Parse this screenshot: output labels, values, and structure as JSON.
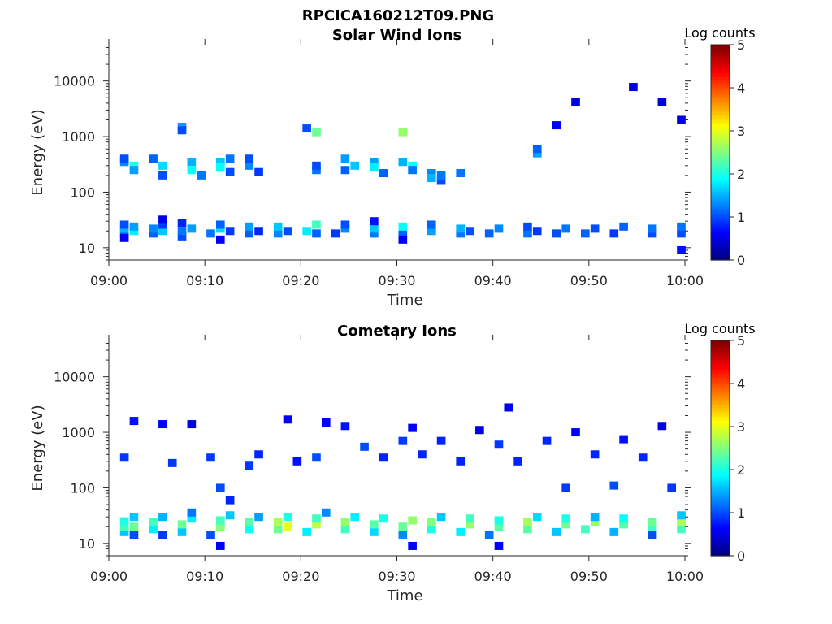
{
  "figure": {
    "title": "RPCICA160212T09.PNG"
  },
  "chart_data": [
    {
      "type": "heatmap",
      "title": "Solar Wind Ions",
      "xlabel": "Time",
      "ylabel": "Energy (eV)",
      "y_scale": "log",
      "xlim": [
        "09:00",
        "10:00"
      ],
      "ylim": [
        6,
        45000
      ],
      "x_ticks": [
        "09:00",
        "09:10",
        "09:20",
        "09:30",
        "09:40",
        "09:50",
        "10:00"
      ],
      "y_ticks": [
        {
          "value": 10,
          "label": "10"
        },
        {
          "value": 100,
          "label": "100"
        },
        {
          "value": 1000,
          "label": "1000"
        },
        {
          "value": 10000,
          "label": "10000"
        }
      ],
      "colorbar": {
        "title": "Log counts",
        "range": [
          0,
          5
        ],
        "ticks": [
          "0",
          "1",
          "2",
          "3",
          "4",
          "5"
        ],
        "colormap": "jet"
      },
      "points": [
        [
          "09:01",
          18,
          1.2
        ],
        [
          "09:01",
          22,
          1.5
        ],
        [
          "09:01",
          26,
          1.0
        ],
        [
          "09:01",
          15,
          0.6
        ],
        [
          "09:02",
          20,
          1.8
        ],
        [
          "09:02",
          24,
          1.4
        ],
        [
          "09:04",
          18,
          1.1
        ],
        [
          "09:04",
          22,
          1.3
        ],
        [
          "09:05",
          20,
          1.6
        ],
        [
          "09:05",
          26,
          0.9
        ],
        [
          "09:05",
          32,
          0.5
        ],
        [
          "09:07",
          16,
          1.0
        ],
        [
          "09:07",
          20,
          1.2
        ],
        [
          "09:07",
          28,
          0.8
        ],
        [
          "09:08",
          22,
          1.4
        ],
        [
          "09:10",
          18,
          1.2
        ],
        [
          "09:11",
          22,
          1.7
        ],
        [
          "09:11",
          26,
          1.1
        ],
        [
          "09:11",
          14,
          0.6
        ],
        [
          "09:12",
          20,
          0.9
        ],
        [
          "09:14",
          18,
          1.1
        ],
        [
          "09:14",
          24,
          1.4
        ],
        [
          "09:15",
          20,
          0.8
        ],
        [
          "09:17",
          18,
          1.3
        ],
        [
          "09:17",
          24,
          1.6
        ],
        [
          "09:18",
          20,
          1.0
        ],
        [
          "09:20",
          20,
          1.8
        ],
        [
          "09:21",
          26,
          2.2
        ],
        [
          "09:21",
          18,
          1.1
        ],
        [
          "09:23",
          18,
          0.9
        ],
        [
          "09:24",
          22,
          1.3
        ],
        [
          "09:24",
          26,
          1.0
        ],
        [
          "09:27",
          18,
          1.2
        ],
        [
          "09:27",
          22,
          1.6
        ],
        [
          "09:27",
          30,
          0.7
        ],
        [
          "09:30",
          18,
          1.1
        ],
        [
          "09:30",
          24,
          1.9
        ],
        [
          "09:30",
          14,
          0.6
        ],
        [
          "09:33",
          20,
          1.4
        ],
        [
          "09:33",
          26,
          1.1
        ],
        [
          "09:36",
          18,
          1.2
        ],
        [
          "09:36",
          22,
          1.5
        ],
        [
          "09:37",
          20,
          1.0
        ],
        [
          "09:39",
          18,
          1.1
        ],
        [
          "09:40",
          22,
          1.3
        ],
        [
          "09:43",
          18,
          1.2
        ],
        [
          "09:43",
          24,
          1.0
        ],
        [
          "09:44",
          20,
          0.9
        ],
        [
          "09:46",
          18,
          1.0
        ],
        [
          "09:47",
          22,
          1.2
        ],
        [
          "09:49",
          18,
          1.1
        ],
        [
          "09:50",
          22,
          1.0
        ],
        [
          "09:52",
          18,
          0.9
        ],
        [
          "09:53",
          24,
          1.1
        ],
        [
          "09:56",
          18,
          1.0
        ],
        [
          "09:56",
          22,
          1.2
        ],
        [
          "09:59",
          18,
          1.0
        ],
        [
          "09:59",
          24,
          1.2
        ],
        [
          "09:59",
          9,
          0.7
        ],
        [
          "09:01",
          350,
          1.3
        ],
        [
          "09:01",
          400,
          1.0
        ],
        [
          "09:02",
          300,
          2.0
        ],
        [
          "09:02",
          250,
          1.4
        ],
        [
          "09:04",
          400,
          1.1
        ],
        [
          "09:05",
          300,
          1.7
        ],
        [
          "09:05",
          200,
          1.0
        ],
        [
          "09:07",
          1500,
          1.4
        ],
        [
          "09:07",
          1300,
          1.0
        ],
        [
          "09:08",
          350,
          1.5
        ],
        [
          "09:08",
          250,
          1.9
        ],
        [
          "09:09",
          200,
          1.2
        ],
        [
          "09:11",
          350,
          1.6
        ],
        [
          "09:11",
          280,
          1.9
        ],
        [
          "09:12",
          400,
          1.2
        ],
        [
          "09:12",
          230,
          1.0
        ],
        [
          "09:14",
          300,
          1.3
        ],
        [
          "09:14",
          400,
          1.0
        ],
        [
          "09:15",
          230,
          0.9
        ],
        [
          "09:20",
          1400,
          1.0
        ],
        [
          "09:21",
          1200,
          2.4
        ],
        [
          "09:21",
          250,
          1.2
        ],
        [
          "09:21",
          300,
          1.0
        ],
        [
          "09:24",
          400,
          1.4
        ],
        [
          "09:24",
          250,
          1.1
        ],
        [
          "09:25",
          300,
          1.6
        ],
        [
          "09:27",
          350,
          1.4
        ],
        [
          "09:27",
          280,
          1.8
        ],
        [
          "09:28",
          220,
          1.1
        ],
        [
          "09:30",
          1200,
          2.6
        ],
        [
          "09:30",
          350,
          1.5
        ],
        [
          "09:31",
          300,
          1.9
        ],
        [
          "09:31",
          250,
          1.2
        ],
        [
          "09:33",
          220,
          1.3
        ],
        [
          "09:33",
          180,
          1.5
        ],
        [
          "09:34",
          160,
          1.0
        ],
        [
          "09:34",
          200,
          1.2
        ],
        [
          "09:36",
          220,
          1.2
        ],
        [
          "09:44",
          500,
          1.4
        ],
        [
          "09:44",
          600,
          1.1
        ],
        [
          "09:46",
          1600,
          0.6
        ],
        [
          "09:48",
          4200,
          0.5
        ],
        [
          "09:54",
          7800,
          0.5
        ],
        [
          "09:57",
          4200,
          0.5
        ],
        [
          "09:59",
          2000,
          0.5
        ]
      ]
    },
    {
      "type": "heatmap",
      "title": "Cometary Ions",
      "xlabel": "Time",
      "ylabel": "Energy (eV)",
      "y_scale": "log",
      "xlim": [
        "09:00",
        "10:00"
      ],
      "ylim": [
        6,
        45000
      ],
      "x_ticks": [
        "09:00",
        "09:10",
        "09:20",
        "09:30",
        "09:40",
        "09:50",
        "10:00"
      ],
      "y_ticks": [
        {
          "value": 10,
          "label": "10"
        },
        {
          "value": 100,
          "label": "100"
        },
        {
          "value": 1000,
          "label": "1000"
        },
        {
          "value": 10000,
          "label": "10000"
        }
      ],
      "colorbar": {
        "title": "Log counts",
        "range": [
          0,
          5
        ],
        "ticks": [
          "0",
          "1",
          "2",
          "3",
          "4",
          "5"
        ],
        "colormap": "jet"
      },
      "points": [
        [
          "09:01",
          16,
          1.6
        ],
        [
          "09:01",
          20,
          2.2
        ],
        [
          "09:01",
          25,
          2.0
        ],
        [
          "09:02",
          30,
          1.6
        ],
        [
          "09:02",
          20,
          2.4
        ],
        [
          "09:02",
          14,
          1.0
        ],
        [
          "09:04",
          18,
          1.8
        ],
        [
          "09:04",
          24,
          2.2
        ],
        [
          "09:05",
          30,
          1.5
        ],
        [
          "09:05",
          14,
          0.9
        ],
        [
          "09:07",
          16,
          1.6
        ],
        [
          "09:07",
          22,
          2.4
        ],
        [
          "09:08",
          28,
          1.8
        ],
        [
          "09:08",
          36,
          1.2
        ],
        [
          "09:10",
          14,
          1.0
        ],
        [
          "09:11",
          20,
          2.5
        ],
        [
          "09:11",
          26,
          2.2
        ],
        [
          "09:12",
          32,
          1.6
        ],
        [
          "09:11",
          9,
          0.6
        ],
        [
          "09:14",
          18,
          1.9
        ],
        [
          "09:14",
          24,
          2.3
        ],
        [
          "09:15",
          30,
          1.4
        ],
        [
          "09:17",
          18,
          2.4
        ],
        [
          "09:17",
          24,
          2.7
        ],
        [
          "09:18",
          20,
          3.0
        ],
        [
          "09:18",
          30,
          2.0
        ],
        [
          "09:20",
          16,
          1.8
        ],
        [
          "09:21",
          22,
          2.8
        ],
        [
          "09:21",
          28,
          2.2
        ],
        [
          "09:22",
          36,
          1.3
        ],
        [
          "09:24",
          18,
          2.2
        ],
        [
          "09:24",
          24,
          2.6
        ],
        [
          "09:25",
          30,
          1.8
        ],
        [
          "09:27",
          16,
          1.7
        ],
        [
          "09:27",
          22,
          2.3
        ],
        [
          "09:28",
          28,
          2.0
        ],
        [
          "09:30",
          14,
          1.3
        ],
        [
          "09:30",
          20,
          2.4
        ],
        [
          "09:31",
          26,
          2.6
        ],
        [
          "09:31",
          9,
          0.6
        ],
        [
          "09:33",
          18,
          2.0
        ],
        [
          "09:33",
          24,
          2.5
        ],
        [
          "09:34",
          30,
          1.6
        ],
        [
          "09:36",
          16,
          1.8
        ],
        [
          "09:37",
          22,
          2.6
        ],
        [
          "09:37",
          28,
          2.2
        ],
        [
          "09:39",
          14,
          1.2
        ],
        [
          "09:40",
          20,
          2.3
        ],
        [
          "09:40",
          26,
          2.0
        ],
        [
          "09:40",
          9,
          0.6
        ],
        [
          "09:43",
          18,
          2.3
        ],
        [
          "09:43",
          24,
          2.7
        ],
        [
          "09:44",
          30,
          1.7
        ],
        [
          "09:46",
          16,
          1.6
        ],
        [
          "09:47",
          22,
          2.4
        ],
        [
          "09:47",
          28,
          2.0
        ],
        [
          "09:49",
          18,
          2.2
        ],
        [
          "09:50",
          24,
          2.6
        ],
        [
          "09:50",
          30,
          1.5
        ],
        [
          "09:52",
          16,
          1.5
        ],
        [
          "09:53",
          22,
          2.3
        ],
        [
          "09:53",
          28,
          1.9
        ],
        [
          "09:56",
          18,
          2.2
        ],
        [
          "09:56",
          24,
          2.4
        ],
        [
          "09:56",
          14,
          1.0
        ],
        [
          "09:59",
          18,
          2.2
        ],
        [
          "09:59",
          24,
          2.7
        ],
        [
          "09:59",
          32,
          1.6
        ],
        [
          "09:01",
          350,
          0.9
        ],
        [
          "09:02",
          1600,
          0.7
        ],
        [
          "09:05",
          1400,
          0.6
        ],
        [
          "09:06",
          280,
          0.9
        ],
        [
          "09:08",
          1400,
          0.5
        ],
        [
          "09:10",
          350,
          0.9
        ],
        [
          "09:11",
          100,
          1.0
        ],
        [
          "09:12",
          60,
          0.8
        ],
        [
          "09:14",
          250,
          0.9
        ],
        [
          "09:15",
          400,
          0.8
        ],
        [
          "09:18",
          1700,
          0.6
        ],
        [
          "09:19",
          300,
          0.7
        ],
        [
          "09:21",
          350,
          1.0
        ],
        [
          "09:22",
          1500,
          0.6
        ],
        [
          "09:24",
          1300,
          0.7
        ],
        [
          "09:26",
          550,
          1.0
        ],
        [
          "09:28",
          350,
          0.8
        ],
        [
          "09:30",
          700,
          0.9
        ],
        [
          "09:31",
          1200,
          0.6
        ],
        [
          "09:32",
          400,
          0.8
        ],
        [
          "09:34",
          700,
          0.8
        ],
        [
          "09:36",
          300,
          0.8
        ],
        [
          "09:38",
          1100,
          0.5
        ],
        [
          "09:40",
          600,
          0.9
        ],
        [
          "09:41",
          2800,
          0.6
        ],
        [
          "09:42",
          300,
          0.8
        ],
        [
          "09:45",
          700,
          0.8
        ],
        [
          "09:47",
          100,
          0.9
        ],
        [
          "09:48",
          1000,
          0.6
        ],
        [
          "09:50",
          400,
          0.8
        ],
        [
          "09:52",
          110,
          1.0
        ],
        [
          "09:53",
          750,
          0.7
        ],
        [
          "09:55",
          350,
          0.8
        ],
        [
          "09:57",
          1300,
          0.5
        ],
        [
          "09:58",
          100,
          0.9
        ]
      ]
    }
  ]
}
